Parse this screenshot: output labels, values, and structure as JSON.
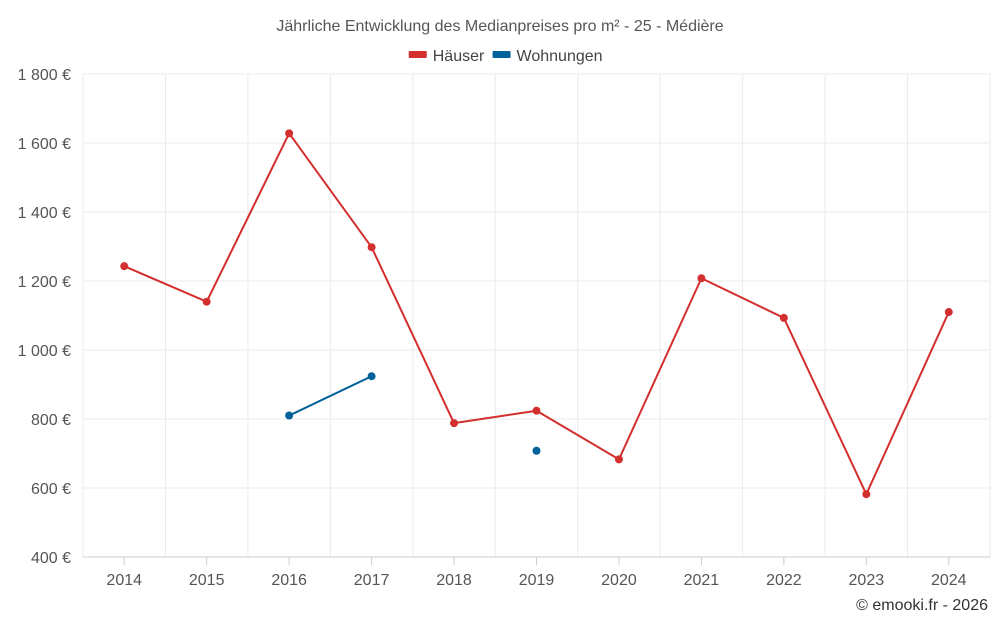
{
  "chart_data": {
    "type": "line",
    "title": "Jährliche Entwicklung des Medianpreises pro m² - 25 - Médière",
    "categories": [
      "2014",
      "2015",
      "2016",
      "2017",
      "2018",
      "2019",
      "2020",
      "2021",
      "2022",
      "2023",
      "2024"
    ],
    "series": [
      {
        "name": "Häuser",
        "color": "#d32f2f",
        "values": [
          1243,
          1140,
          1628,
          1298,
          788,
          824,
          683,
          1208,
          1093,
          582,
          1110
        ]
      },
      {
        "name": "Wohnungen",
        "color": "#01619b",
        "values": [
          null,
          null,
          810,
          924,
          null,
          708,
          null,
          null,
          null,
          null,
          null
        ]
      }
    ],
    "ylim": [
      400,
      1800
    ],
    "yticks": [
      400,
      600,
      800,
      1000,
      1200,
      1400,
      1600,
      1800
    ],
    "ytick_labels": [
      "400 €",
      "600 €",
      "800 €",
      "1 000 €",
      "1 200 €",
      "1 400 €",
      "1 600 €",
      "1 800 €"
    ],
    "xlabel": "",
    "ylabel": "",
    "legend_position": "top-center",
    "grid": true
  },
  "credit": "© emooki.fr - 2026"
}
